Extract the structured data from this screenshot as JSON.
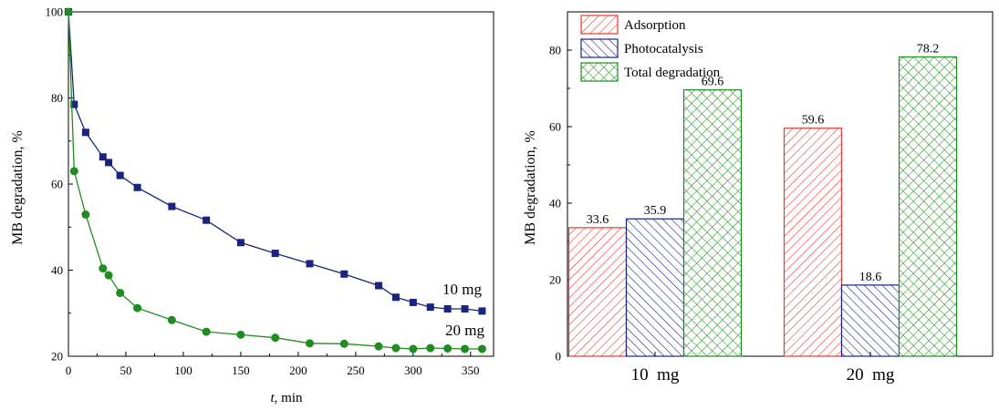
{
  "chart_data": [
    {
      "type": "line",
      "title": "",
      "xlabel_italic": "t",
      "xlabel_rest": ", min",
      "ylabel": "MB degradation, %",
      "xlim": [
        0,
        370
      ],
      "ylim": [
        20,
        100
      ],
      "xticks": [
        0,
        50,
        100,
        150,
        200,
        250,
        300,
        350
      ],
      "yticks": [
        20,
        40,
        60,
        80,
        100
      ],
      "grid": false,
      "series": [
        {
          "name": "10 mg",
          "color": "#1a237e",
          "marker": "square",
          "x": [
            0,
            5,
            15,
            30,
            35,
            45,
            60,
            90,
            120,
            150,
            180,
            210,
            240,
            270,
            285,
            300,
            315,
            330,
            345,
            360
          ],
          "y": [
            100,
            78.5,
            72.0,
            66.3,
            65.0,
            62.0,
            59.2,
            54.8,
            51.6,
            46.4,
            43.9,
            41.5,
            39.1,
            36.4,
            33.7,
            32.5,
            31.4,
            31.0,
            31.0,
            30.5
          ]
        },
        {
          "name": "20 mg",
          "color": "#1e8c1e",
          "marker": "circle",
          "x": [
            0,
            5,
            15,
            30,
            35,
            45,
            60,
            90,
            120,
            150,
            180,
            210,
            240,
            270,
            285,
            300,
            315,
            330,
            345,
            360
          ],
          "y": [
            100,
            63.0,
            52.9,
            40.4,
            38.8,
            34.7,
            31.2,
            28.4,
            25.7,
            25.0,
            24.3,
            23.0,
            22.9,
            22.3,
            21.9,
            21.7,
            21.9,
            21.8,
            21.7,
            21.7
          ]
        }
      ]
    },
    {
      "type": "bar",
      "title": "",
      "xlabel": "",
      "ylabel": "MB degradation, %",
      "ylim": [
        0,
        90
      ],
      "yticks": [
        0,
        20,
        40,
        60,
        80
      ],
      "grid": false,
      "legend_position": "top-left",
      "categories": [
        "10  mg",
        "20  mg"
      ],
      "series": [
        {
          "name": "Adsorption",
          "color": "#e53935",
          "pattern": "diagonal-right",
          "values": [
            33.6,
            59.6
          ]
        },
        {
          "name": "Photocatalysis",
          "color": "#1a237e",
          "pattern": "diagonal-left",
          "values": [
            35.9,
            18.6
          ]
        },
        {
          "name": "Total degradation",
          "color": "#1e8c1e",
          "pattern": "crosshatch",
          "values": [
            69.6,
            78.2
          ]
        }
      ]
    }
  ]
}
